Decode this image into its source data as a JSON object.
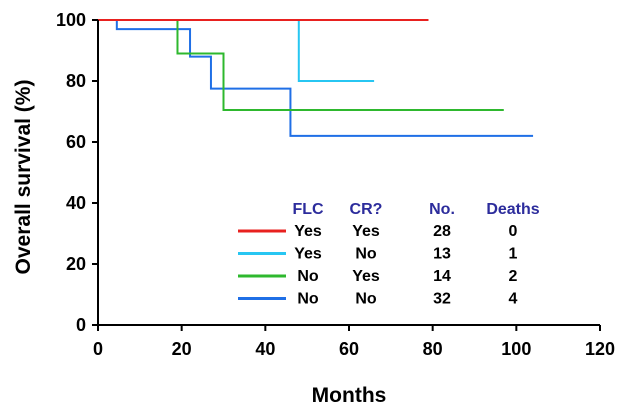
{
  "chart_data": {
    "type": "line",
    "step": true,
    "xlabel": "Months",
    "ylabel": "Overall survival (%)",
    "xlim": [
      0,
      120
    ],
    "ylim": [
      0,
      100
    ],
    "xticks": [
      "0",
      "20",
      "40",
      "60",
      "80",
      "100",
      "120"
    ],
    "yticks": [
      "0",
      "20",
      "40",
      "60",
      "80",
      "100"
    ],
    "grid": false,
    "legend_position": "lower-center",
    "legend_headers": [
      "FLC",
      "CR?",
      "No.",
      "Deaths"
    ],
    "series": [
      {
        "color": "#e8211f",
        "flc": "Yes",
        "cr": "Yes",
        "no": "28",
        "deaths": "0",
        "x": [
          0,
          79
        ],
        "y": [
          100,
          100
        ]
      },
      {
        "color": "#27c6f2",
        "flc": "Yes",
        "cr": "No",
        "no": "13",
        "deaths": "1",
        "x": [
          0,
          48,
          48,
          66
        ],
        "y": [
          100,
          100,
          80,
          80
        ]
      },
      {
        "color": "#2eb82e",
        "flc": "No",
        "cr": "Yes",
        "no": "14",
        "deaths": "2",
        "x": [
          0,
          19,
          19,
          30,
          30,
          97
        ],
        "y": [
          100,
          100,
          89,
          89,
          70.5,
          70.5
        ]
      },
      {
        "color": "#1f6fe6",
        "flc": "No",
        "cr": "No",
        "no": "32",
        "deaths": "4",
        "x": [
          0,
          4.5,
          4.5,
          22,
          22,
          27,
          27,
          46,
          46,
          104
        ],
        "y": [
          100,
          100,
          97,
          97,
          88,
          88,
          77.5,
          77.5,
          62,
          62
        ]
      }
    ]
  }
}
